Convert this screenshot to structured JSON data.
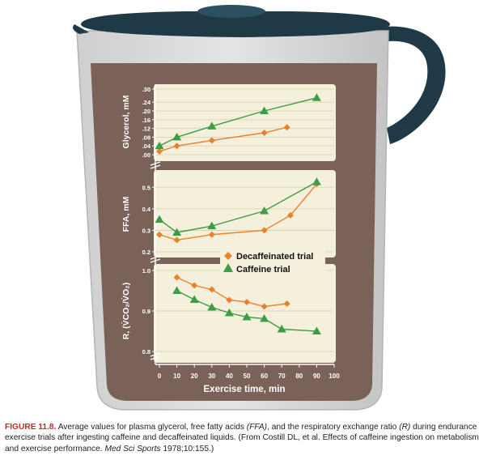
{
  "chart_data": {
    "type": "line",
    "x_axis": {
      "label": "Exercise time, min",
      "ticks": [
        0,
        10,
        20,
        30,
        40,
        50,
        60,
        70,
        80,
        90,
        100
      ],
      "range": [
        0,
        100
      ]
    },
    "legend": {
      "placement": "center-right",
      "entries": [
        "Decaffeinated trial",
        "Caffeine trial"
      ]
    },
    "panels": [
      {
        "id": "glycerol",
        "ylabel": "Glycerol, mM",
        "ylim": [
          0,
          0.3
        ],
        "yticks": [
          ".00",
          ".04",
          ".08",
          ".12",
          ".16",
          ".20",
          ".24",
          ".30"
        ],
        "ytick_values": [
          0,
          0.04,
          0.08,
          0.12,
          0.16,
          0.2,
          0.24,
          0.3
        ],
        "series": [
          {
            "name": "Decaffeinated trial",
            "x": [
              0,
              10,
              30,
              60,
              73
            ],
            "y": [
              0.015,
              0.04,
              0.065,
              0.1,
              0.125
            ]
          },
          {
            "name": "Caffeine trial",
            "x": [
              0,
              10,
              30,
              60,
              90
            ],
            "y": [
              0.04,
              0.08,
              0.13,
              0.2,
              0.26
            ]
          }
        ]
      },
      {
        "id": "ffa",
        "ylabel": "FFA, mM",
        "ylim": [
          0.2,
          0.55
        ],
        "yticks": [
          "0.2",
          "0.3",
          "0.4",
          "0.5"
        ],
        "ytick_values": [
          0.2,
          0.3,
          0.4,
          0.5
        ],
        "series": [
          {
            "name": "Decaffeinated trial",
            "x": [
              0,
              10,
              30,
              60,
              75,
              90
            ],
            "y": [
              0.28,
              0.255,
              0.28,
              0.3,
              0.37,
              0.515
            ]
          },
          {
            "name": "Caffeine trial",
            "x": [
              0,
              10,
              30,
              60,
              90
            ],
            "y": [
              0.35,
              0.29,
              0.32,
              0.39,
              0.525
            ]
          }
        ]
      },
      {
        "id": "rer",
        "ylabel": "R, (V̇CO₂/V̇O₂)",
        "ylim": [
          0.8,
          1.0
        ],
        "yticks": [
          "0.8",
          "0.9",
          "1.0"
        ],
        "ytick_values": [
          0.8,
          0.9,
          1.0
        ],
        "series": [
          {
            "name": "Decaffeinated trial",
            "x": [
              10,
              20,
              30,
              40,
              50,
              60,
              73
            ],
            "y": [
              0.983,
              0.963,
              0.953,
              0.927,
              0.922,
              0.911,
              0.918
            ]
          },
          {
            "name": "Caffeine trial",
            "x": [
              10,
              20,
              30,
              40,
              50,
              60,
              70,
              90
            ],
            "y": [
              0.95,
              0.928,
              0.909,
              0.895,
              0.885,
              0.881,
              0.855,
              0.85
            ]
          }
        ]
      }
    ]
  },
  "colors": {
    "decaf": "#e8822a",
    "caffeine": "#3e9c45",
    "plot_background": "#f4f0dc",
    "liquid": "#7b6258",
    "pitcher_handle": "#1f3a46",
    "caption_figure_number": "#b8312f"
  },
  "caption": {
    "figure_number": "FIGURE 11.8.",
    "text_1": " Average values for plasma glycerol, free fatty acids ",
    "abbr_ffa": "(FFA)",
    "text_2": ", and the respiratory exchange ratio ",
    "abbr_r": "(R)",
    "text_3": " during endurance exercise trials after ingesting caffeine and decaffeinated liquids. (From Costill DL, et al. Effects of caffeine ingestion on metabolism and exercise performance. ",
    "journal": "Med Sci Sports",
    "text_4": " 1978;10:155.)"
  }
}
